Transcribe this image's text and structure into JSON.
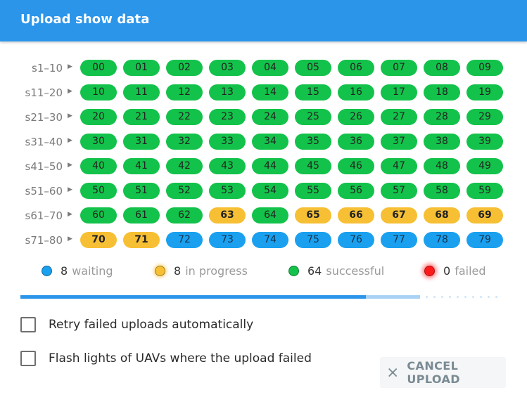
{
  "dialog": {
    "title": "Upload show data"
  },
  "rows": [
    {
      "label": "s1–10",
      "items": [
        [
          "00",
          "successful"
        ],
        [
          "01",
          "successful"
        ],
        [
          "02",
          "successful"
        ],
        [
          "03",
          "successful"
        ],
        [
          "04",
          "successful"
        ],
        [
          "05",
          "successful"
        ],
        [
          "06",
          "successful"
        ],
        [
          "07",
          "successful"
        ],
        [
          "08",
          "successful"
        ],
        [
          "09",
          "successful"
        ]
      ]
    },
    {
      "label": "s11–20",
      "items": [
        [
          "10",
          "successful"
        ],
        [
          "11",
          "successful"
        ],
        [
          "12",
          "successful"
        ],
        [
          "13",
          "successful"
        ],
        [
          "14",
          "successful"
        ],
        [
          "15",
          "successful"
        ],
        [
          "16",
          "successful"
        ],
        [
          "17",
          "successful"
        ],
        [
          "18",
          "successful"
        ],
        [
          "19",
          "successful"
        ]
      ]
    },
    {
      "label": "s21–30",
      "items": [
        [
          "20",
          "successful"
        ],
        [
          "21",
          "successful"
        ],
        [
          "22",
          "successful"
        ],
        [
          "23",
          "successful"
        ],
        [
          "24",
          "successful"
        ],
        [
          "25",
          "successful"
        ],
        [
          "26",
          "successful"
        ],
        [
          "27",
          "successful"
        ],
        [
          "28",
          "successful"
        ],
        [
          "29",
          "successful"
        ]
      ]
    },
    {
      "label": "s31–40",
      "items": [
        [
          "30",
          "successful"
        ],
        [
          "31",
          "successful"
        ],
        [
          "32",
          "successful"
        ],
        [
          "33",
          "successful"
        ],
        [
          "34",
          "successful"
        ],
        [
          "35",
          "successful"
        ],
        [
          "36",
          "successful"
        ],
        [
          "37",
          "successful"
        ],
        [
          "38",
          "successful"
        ],
        [
          "39",
          "successful"
        ]
      ]
    },
    {
      "label": "s41–50",
      "items": [
        [
          "40",
          "successful"
        ],
        [
          "41",
          "successful"
        ],
        [
          "42",
          "successful"
        ],
        [
          "43",
          "successful"
        ],
        [
          "44",
          "successful"
        ],
        [
          "45",
          "successful"
        ],
        [
          "46",
          "successful"
        ],
        [
          "47",
          "successful"
        ],
        [
          "48",
          "successful"
        ],
        [
          "49",
          "successful"
        ]
      ]
    },
    {
      "label": "s51–60",
      "items": [
        [
          "50",
          "successful"
        ],
        [
          "51",
          "successful"
        ],
        [
          "52",
          "successful"
        ],
        [
          "53",
          "successful"
        ],
        [
          "54",
          "successful"
        ],
        [
          "55",
          "successful"
        ],
        [
          "56",
          "successful"
        ],
        [
          "57",
          "successful"
        ],
        [
          "58",
          "successful"
        ],
        [
          "59",
          "successful"
        ]
      ]
    },
    {
      "label": "s61–70",
      "items": [
        [
          "60",
          "successful"
        ],
        [
          "61",
          "successful"
        ],
        [
          "62",
          "successful"
        ],
        [
          "63",
          "in_progress"
        ],
        [
          "64",
          "successful"
        ],
        [
          "65",
          "in_progress"
        ],
        [
          "66",
          "in_progress"
        ],
        [
          "67",
          "in_progress"
        ],
        [
          "68",
          "in_progress"
        ],
        [
          "69",
          "in_progress"
        ]
      ]
    },
    {
      "label": "s71–80",
      "items": [
        [
          "70",
          "in_progress"
        ],
        [
          "71",
          "in_progress"
        ],
        [
          "72",
          "waiting"
        ],
        [
          "73",
          "waiting"
        ],
        [
          "74",
          "waiting"
        ],
        [
          "75",
          "waiting"
        ],
        [
          "76",
          "waiting"
        ],
        [
          "77",
          "waiting"
        ],
        [
          "78",
          "waiting"
        ],
        [
          "79",
          "waiting"
        ]
      ]
    }
  ],
  "legend": {
    "waiting": {
      "count": "8",
      "label": "waiting"
    },
    "in_progress": {
      "count": "8",
      "label": "in progress"
    },
    "successful": {
      "count": "64",
      "label": "successful"
    },
    "failed": {
      "count": "0",
      "label": "failed"
    }
  },
  "progress": {
    "done_fraction": 0.718,
    "partial_fraction": 0.83
  },
  "options": {
    "retry_label": "Retry failed uploads automatically",
    "retry_checked": false,
    "flash_label": "Flash lights of UAVs where the upload failed",
    "flash_checked": false
  },
  "actions": {
    "cancel_label": "CANCEL UPLOAD"
  },
  "colors": {
    "title_bar": "#2b95ea",
    "successful": "#13c24a",
    "in_progress": "#f7bf34",
    "waiting": "#1aa0ef",
    "failed": "#ff1a1a"
  }
}
